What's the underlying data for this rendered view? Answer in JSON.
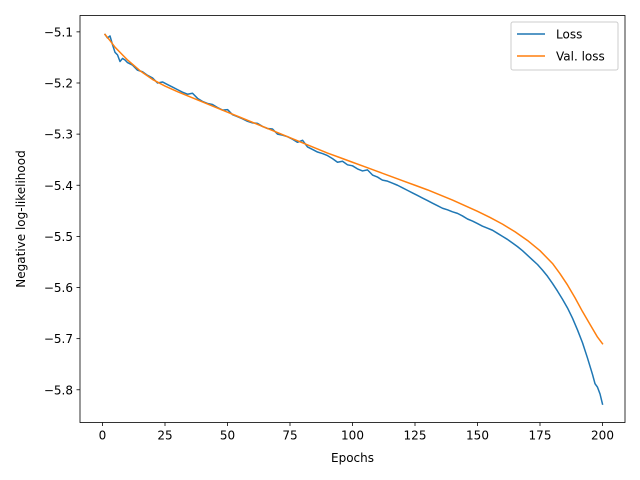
{
  "chart_data": {
    "type": "line",
    "title": "",
    "xlabel": "Epochs",
    "ylabel": "Negative log-likelihood",
    "xlim": [
      -9,
      209
    ],
    "ylim": [
      -5.864,
      -5.068
    ],
    "xticks": [
      0,
      25,
      50,
      75,
      100,
      125,
      150,
      175,
      200
    ],
    "yticks": [
      -5.1,
      -5.2,
      -5.3,
      -5.4,
      -5.5,
      -5.6,
      -5.7,
      -5.8
    ],
    "grid": false,
    "legend": "top-right",
    "series": [
      {
        "name": "Loss",
        "color": "#1f77b4",
        "x": [
          1,
          2,
          3,
          4,
          5,
          6,
          7,
          8,
          9,
          10,
          12,
          14,
          16,
          18,
          20,
          22,
          24,
          26,
          28,
          30,
          32,
          34,
          36,
          38,
          40,
          42,
          44,
          46,
          48,
          50,
          52,
          54,
          56,
          58,
          60,
          62,
          64,
          66,
          68,
          70,
          72,
          74,
          76,
          78,
          80,
          82,
          84,
          86,
          88,
          90,
          92,
          94,
          96,
          98,
          100,
          102,
          104,
          106,
          108,
          110,
          112,
          114,
          116,
          118,
          120,
          122,
          124,
          126,
          128,
          130,
          132,
          134,
          136,
          138,
          140,
          142,
          144,
          146,
          148,
          150,
          152,
          154,
          156,
          158,
          160,
          162,
          164,
          166,
          168,
          170,
          172,
          174,
          176,
          178,
          180,
          182,
          184,
          186,
          188,
          190,
          192,
          194,
          196,
          197,
          198,
          199,
          200
        ],
        "y": [
          -5.105,
          -5.112,
          -5.108,
          -5.125,
          -5.14,
          -5.145,
          -5.158,
          -5.152,
          -5.155,
          -5.16,
          -5.165,
          -5.175,
          -5.178,
          -5.185,
          -5.19,
          -5.2,
          -5.198,
          -5.203,
          -5.208,
          -5.213,
          -5.218,
          -5.222,
          -5.22,
          -5.23,
          -5.236,
          -5.24,
          -5.242,
          -5.248,
          -5.253,
          -5.252,
          -5.262,
          -5.266,
          -5.27,
          -5.275,
          -5.278,
          -5.279,
          -5.285,
          -5.289,
          -5.29,
          -5.3,
          -5.302,
          -5.305,
          -5.31,
          -5.316,
          -5.312,
          -5.325,
          -5.33,
          -5.335,
          -5.338,
          -5.342,
          -5.348,
          -5.355,
          -5.353,
          -5.36,
          -5.362,
          -5.368,
          -5.372,
          -5.37,
          -5.38,
          -5.384,
          -5.39,
          -5.392,
          -5.396,
          -5.4,
          -5.405,
          -5.41,
          -5.415,
          -5.42,
          -5.425,
          -5.43,
          -5.435,
          -5.44,
          -5.445,
          -5.448,
          -5.452,
          -5.455,
          -5.46,
          -5.466,
          -5.47,
          -5.475,
          -5.48,
          -5.484,
          -5.488,
          -5.494,
          -5.5,
          -5.506,
          -5.513,
          -5.52,
          -5.528,
          -5.537,
          -5.546,
          -5.555,
          -5.566,
          -5.578,
          -5.592,
          -5.607,
          -5.623,
          -5.64,
          -5.66,
          -5.683,
          -5.708,
          -5.738,
          -5.77,
          -5.788,
          -5.795,
          -5.808,
          -5.828
        ]
      },
      {
        "name": "Val. loss",
        "color": "#ff7f0e",
        "x": [
          1,
          3,
          5,
          8,
          10,
          15,
          20,
          25,
          30,
          35,
          40,
          45,
          50,
          55,
          60,
          65,
          70,
          75,
          80,
          85,
          90,
          95,
          100,
          105,
          110,
          115,
          120,
          125,
          130,
          135,
          140,
          145,
          150,
          155,
          160,
          165,
          170,
          175,
          180,
          183,
          186,
          189,
          192,
          195,
          198,
          200
        ],
        "y": [
          -5.105,
          -5.117,
          -5.13,
          -5.145,
          -5.155,
          -5.176,
          -5.193,
          -5.206,
          -5.217,
          -5.227,
          -5.237,
          -5.247,
          -5.257,
          -5.267,
          -5.277,
          -5.287,
          -5.297,
          -5.307,
          -5.317,
          -5.327,
          -5.337,
          -5.346,
          -5.355,
          -5.364,
          -5.373,
          -5.382,
          -5.391,
          -5.4,
          -5.409,
          -5.419,
          -5.429,
          -5.44,
          -5.451,
          -5.463,
          -5.476,
          -5.491,
          -5.508,
          -5.528,
          -5.553,
          -5.573,
          -5.595,
          -5.62,
          -5.647,
          -5.672,
          -5.697,
          -5.71
        ]
      }
    ]
  }
}
